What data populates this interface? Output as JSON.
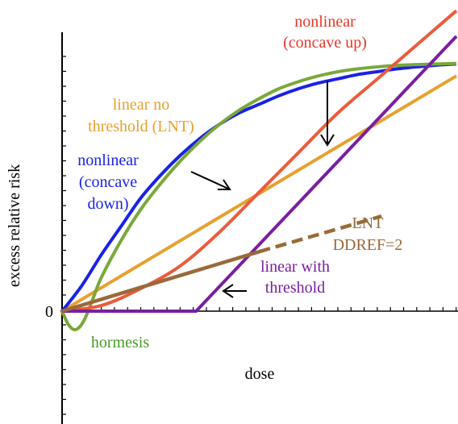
{
  "chart_data": {
    "type": "line",
    "title": "",
    "xlabel": "dose",
    "ylabel": "excess relative risk",
    "y_tick_labels": [
      "0"
    ],
    "xlim": [
      0,
      10
    ],
    "ylim": [
      -3.5,
      10
    ],
    "grid": false,
    "legend": "none",
    "series": [
      {
        "name": "linear no threshold (LNT)",
        "color": "#e8a030",
        "x": [
          0,
          10
        ],
        "y": [
          0,
          8.3
        ]
      },
      {
        "name": "nonlinear (concave down)",
        "color": "#1a22e6",
        "x": [
          0,
          0.5,
          1,
          1.5,
          2,
          2.5,
          3,
          3.5,
          4,
          4.5,
          5,
          5.5,
          6,
          6.5,
          7,
          7.5,
          8,
          8.5,
          9,
          9.5,
          10
        ],
        "y": [
          0,
          0.9,
          2.0,
          3.0,
          4.0,
          4.8,
          5.5,
          6.1,
          6.6,
          7.0,
          7.3,
          7.6,
          7.85,
          8.05,
          8.2,
          8.35,
          8.45,
          8.55,
          8.62,
          8.68,
          8.72
        ]
      },
      {
        "name": "hormesis",
        "color": "#7aa83a",
        "x": [
          0,
          0.15,
          0.3,
          0.45,
          0.6,
          0.8,
          1,
          1.5,
          2,
          2.5,
          3,
          3.5,
          4,
          4.5,
          5,
          5.5,
          6,
          6.5,
          7,
          7.5,
          8,
          8.5,
          9,
          9.5,
          10
        ],
        "y": [
          0,
          -0.45,
          -0.65,
          -0.55,
          -0.2,
          0.5,
          1.2,
          2.5,
          3.6,
          4.5,
          5.3,
          6.0,
          6.6,
          7.1,
          7.5,
          7.85,
          8.1,
          8.3,
          8.45,
          8.55,
          8.62,
          8.67,
          8.7,
          8.72,
          8.74
        ]
      },
      {
        "name": "nonlinear (concave up)",
        "color": "#ea5c3c",
        "x": [
          0,
          1,
          2,
          3,
          4,
          5,
          6,
          7,
          8,
          9,
          10
        ],
        "y": [
          0,
          0.2,
          0.8,
          1.6,
          2.8,
          4.2,
          5.6,
          7.0,
          8.2,
          9.4,
          10.6
        ]
      },
      {
        "name": "linear with threshold",
        "color": "#7a1ea0",
        "x": [
          0,
          3.4,
          10
        ],
        "y": [
          0,
          0,
          9.7
        ]
      },
      {
        "name": "LNT DDREF=2",
        "color": "#9a6a3a",
        "x": [
          0,
          5,
          8.1
        ],
        "y": [
          0,
          2.1,
          3.35
        ]
      }
    ],
    "annotations": [
      {
        "text": "nonlinear",
        "color": "#e8362a"
      },
      {
        "text": "(concave up)",
        "color": "#e8362a"
      },
      {
        "text": "linear no",
        "color": "#e8a030"
      },
      {
        "text": "threshold (LNT)",
        "color": "#e8a030"
      },
      {
        "text": "nonlinear",
        "color": "#1a22e6"
      },
      {
        "text": "(concave",
        "color": "#1a22e6"
      },
      {
        "text": "down)",
        "color": "#1a22e6"
      },
      {
        "text": "LNT",
        "color": "#9a6a3a"
      },
      {
        "text": "DDREF=2",
        "color": "#9a6a3a"
      },
      {
        "text": "linear with",
        "color": "#7a1ea0"
      },
      {
        "text": "threshold",
        "color": "#7a1ea0"
      },
      {
        "text": "hormesis",
        "color": "#4a9a2a"
      }
    ]
  }
}
